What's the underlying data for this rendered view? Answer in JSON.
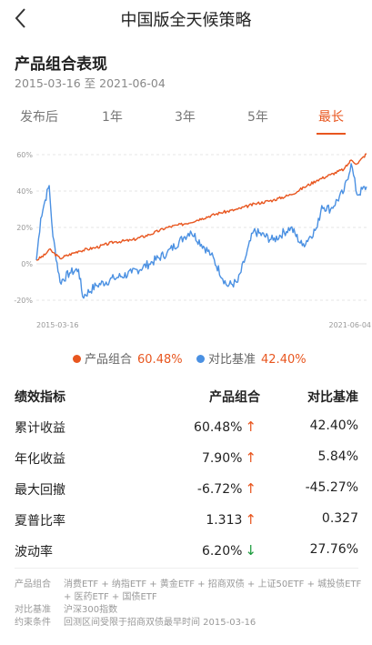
{
  "header": {
    "title": "中国版全天候策略"
  },
  "section": {
    "title": "产品组合表现",
    "date_start": "2015-03-16",
    "date_connector": "至",
    "date_end": "2021-06-04"
  },
  "tabs": [
    {
      "label": "发布后",
      "active": false
    },
    {
      "label": "1年",
      "active": false
    },
    {
      "label": "3年",
      "active": false
    },
    {
      "label": "5年",
      "active": false
    },
    {
      "label": "最长",
      "active": true
    }
  ],
  "colors": {
    "portfolio": "#e8561f",
    "benchmark": "#4a90e2",
    "accent": "#e8561f",
    "down": "#1a9b3c"
  },
  "chart_data": {
    "type": "line",
    "xlim": [
      "2015-03-16",
      "2021-06-04"
    ],
    "ylim": [
      -20,
      60
    ],
    "yticks": [
      "60%",
      "40%",
      "20%",
      "0%",
      "-20%"
    ],
    "ytick_values": [
      60,
      40,
      20,
      0,
      -20
    ],
    "xtick_labels": [
      "2015-03-16",
      "2021-06-04"
    ],
    "grid": true,
    "series": [
      {
        "name": "产品组合",
        "color": "#e8561f",
        "x": [
          "2015-03-16",
          "2015-05-15",
          "2015-06-12",
          "2015-08-25",
          "2015-12-31",
          "2016-04-30",
          "2016-08-31",
          "2016-12-31",
          "2017-04-30",
          "2017-08-31",
          "2017-12-31",
          "2018-04-30",
          "2018-08-31",
          "2018-12-31",
          "2019-04-30",
          "2019-08-31",
          "2019-12-31",
          "2020-03-31",
          "2020-06-30",
          "2020-09-30",
          "2020-12-31",
          "2021-02-18",
          "2021-03-31",
          "2021-06-04"
        ],
        "y": [
          2,
          5,
          8,
          3,
          7,
          9,
          12,
          13,
          16,
          20,
          22,
          25,
          28,
          30,
          33,
          35,
          38,
          42,
          46,
          49,
          52,
          57,
          55,
          60.48
        ]
      },
      {
        "name": "对比基准",
        "color": "#4a90e2",
        "x": [
          "2015-03-16",
          "2015-04-15",
          "2015-05-15",
          "2015-06-12",
          "2015-07-08",
          "2015-08-26",
          "2015-10-31",
          "2015-12-31",
          "2016-01-28",
          "2016-04-30",
          "2016-08-31",
          "2016-12-31",
          "2017-04-30",
          "2017-08-31",
          "2017-12-31",
          "2018-02-09",
          "2018-06-30",
          "2018-10-18",
          "2018-12-31",
          "2019-02-28",
          "2019-04-19",
          "2019-08-31",
          "2019-12-31",
          "2020-03-19",
          "2020-06-30",
          "2020-07-31",
          "2020-09-30",
          "2020-12-31",
          "2021-02-18",
          "2021-03-31",
          "2021-06-04"
        ],
        "y": [
          2,
          25,
          35,
          43,
          15,
          -10,
          -5,
          -3,
          -18,
          -12,
          -8,
          -5,
          0,
          6,
          15,
          18,
          5,
          -12,
          -10,
          5,
          18,
          13,
          20,
          10,
          20,
          32,
          30,
          40,
          55,
          38,
          42.4
        ]
      }
    ]
  },
  "legend": [
    {
      "name": "产品组合",
      "value": "60.48%",
      "color": "#e8561f"
    },
    {
      "name": "对比基准",
      "value": "42.40%",
      "color": "#4a90e2"
    }
  ],
  "table": {
    "headers": [
      "绩效指标",
      "产品组合",
      "对比基准"
    ],
    "rows": [
      {
        "label": "累计收益",
        "portfolio": "60.48%",
        "arrow": "↑",
        "dir": "up",
        "benchmark": "42.40%"
      },
      {
        "label": "年化收益",
        "portfolio": "7.90%",
        "arrow": "↑",
        "dir": "up",
        "benchmark": "5.84%"
      },
      {
        "label": "最大回撤",
        "portfolio": "-6.72%",
        "arrow": "↑",
        "dir": "up",
        "benchmark": "-45.27%"
      },
      {
        "label": "夏普比率",
        "portfolio": "1.313",
        "arrow": "↑",
        "dir": "up",
        "benchmark": "0.327"
      },
      {
        "label": "波动率",
        "portfolio": "6.20%",
        "arrow": "↓",
        "dir": "down",
        "benchmark": "27.76%"
      }
    ]
  },
  "notes": [
    {
      "label": "产品组合",
      "value": "消费ETF + 纳指ETF + 黄金ETF + 招商双债 + 上证50ETF + 城投债ETF + 医药ETF + 国债ETF"
    },
    {
      "label": "对比基准",
      "value": "沪深300指数"
    },
    {
      "label": "约束条件",
      "value": "回测区间受限于招商双债最早时间 2015-03-16"
    }
  ]
}
